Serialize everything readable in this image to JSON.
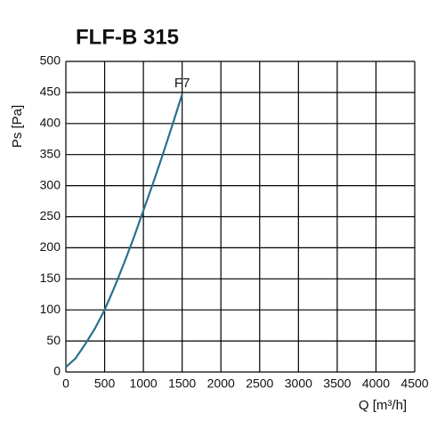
{
  "chart_data": {
    "type": "line",
    "title": "FLF-B 315",
    "y_label": "Ps [Pa]",
    "x_label": "Q [m³/h]",
    "x": [
      0,
      125,
      250,
      375,
      500,
      625,
      750,
      875,
      1000,
      1125,
      1250,
      1375,
      1500
    ],
    "series": [
      {
        "name": "F7",
        "color": "#2b6f8e",
        "values": [
          8,
          22,
          45,
          70,
          100,
          136,
          175,
          216,
          260,
          304,
          350,
          398,
          447
        ]
      }
    ],
    "xlim": [
      0,
      4500
    ],
    "xticks": [
      0,
      500,
      1000,
      1500,
      2000,
      2500,
      3000,
      3500,
      4000,
      4500
    ],
    "ylim": [
      0,
      500
    ],
    "yticks": [
      0,
      50,
      100,
      150,
      200,
      250,
      300,
      350,
      400,
      450,
      500
    ],
    "grid": true
  }
}
